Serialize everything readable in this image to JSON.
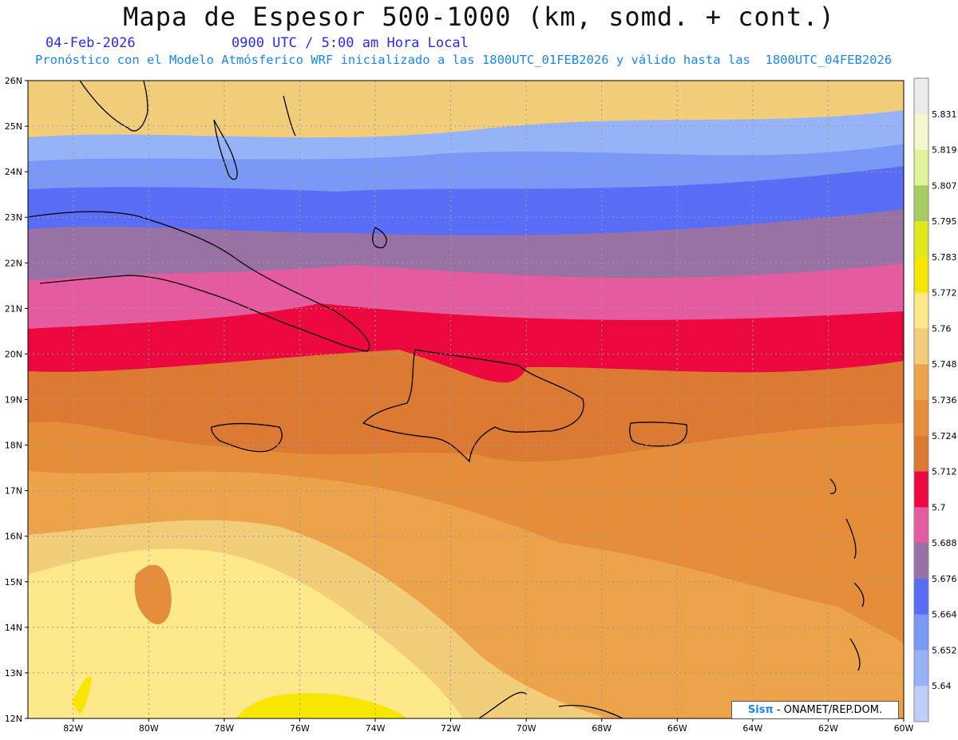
{
  "header": {
    "title": "Mapa de Espesor 500-1000 (km, somd. + cont.)",
    "date": "04-Feb-2026",
    "time": "0900 UTC / 5:00 am Hora Local",
    "forecast": "Pronóstico con el Modelo Atmósferico WRF inicializado a las 1800UTC_01FEB2026 y válido hasta las  1800UTC_04FEB2026"
  },
  "axes": {
    "lat_labels": [
      "26N",
      "25N",
      "24N",
      "23N",
      "22N",
      "21N",
      "20N",
      "19N",
      "18N",
      "17N",
      "16N",
      "15N",
      "14N",
      "13N",
      "12N"
    ],
    "lon_labels": [
      "82W",
      "80W",
      "78W",
      "76W",
      "74W",
      "72W",
      "70W",
      "68W",
      "66W",
      "64W",
      "62W",
      "60W"
    ],
    "lat_range": [
      12,
      26
    ],
    "lon_range": [
      -83.2,
      -60
    ]
  },
  "legend": {
    "labels": [
      "5.831",
      "5.819",
      "5.807",
      "5.795",
      "5.783",
      "5.772",
      "5.76",
      "5.748",
      "5.736",
      "5.724",
      "5.712",
      "5.7",
      "5.688",
      "5.676",
      "5.664",
      "5.652",
      "5.64"
    ],
    "colors_top_to_bottom": [
      "#ebebeb",
      "#f5f7cc",
      "#e2f3a0",
      "#a6cc62",
      "#dfe91e",
      "#f7e600",
      "#fde98a",
      "#f2cd7a",
      "#eca349",
      "#e58d39",
      "#dc7a33",
      "#ec083e",
      "#e45ba0",
      "#9872a5",
      "#5a6df6",
      "#7a98f6",
      "#97b3f8",
      "#c0cefa"
    ]
  },
  "footer": {
    "brand": "Sisπ",
    "credit": " - ONAMET/REP.DOM."
  }
}
